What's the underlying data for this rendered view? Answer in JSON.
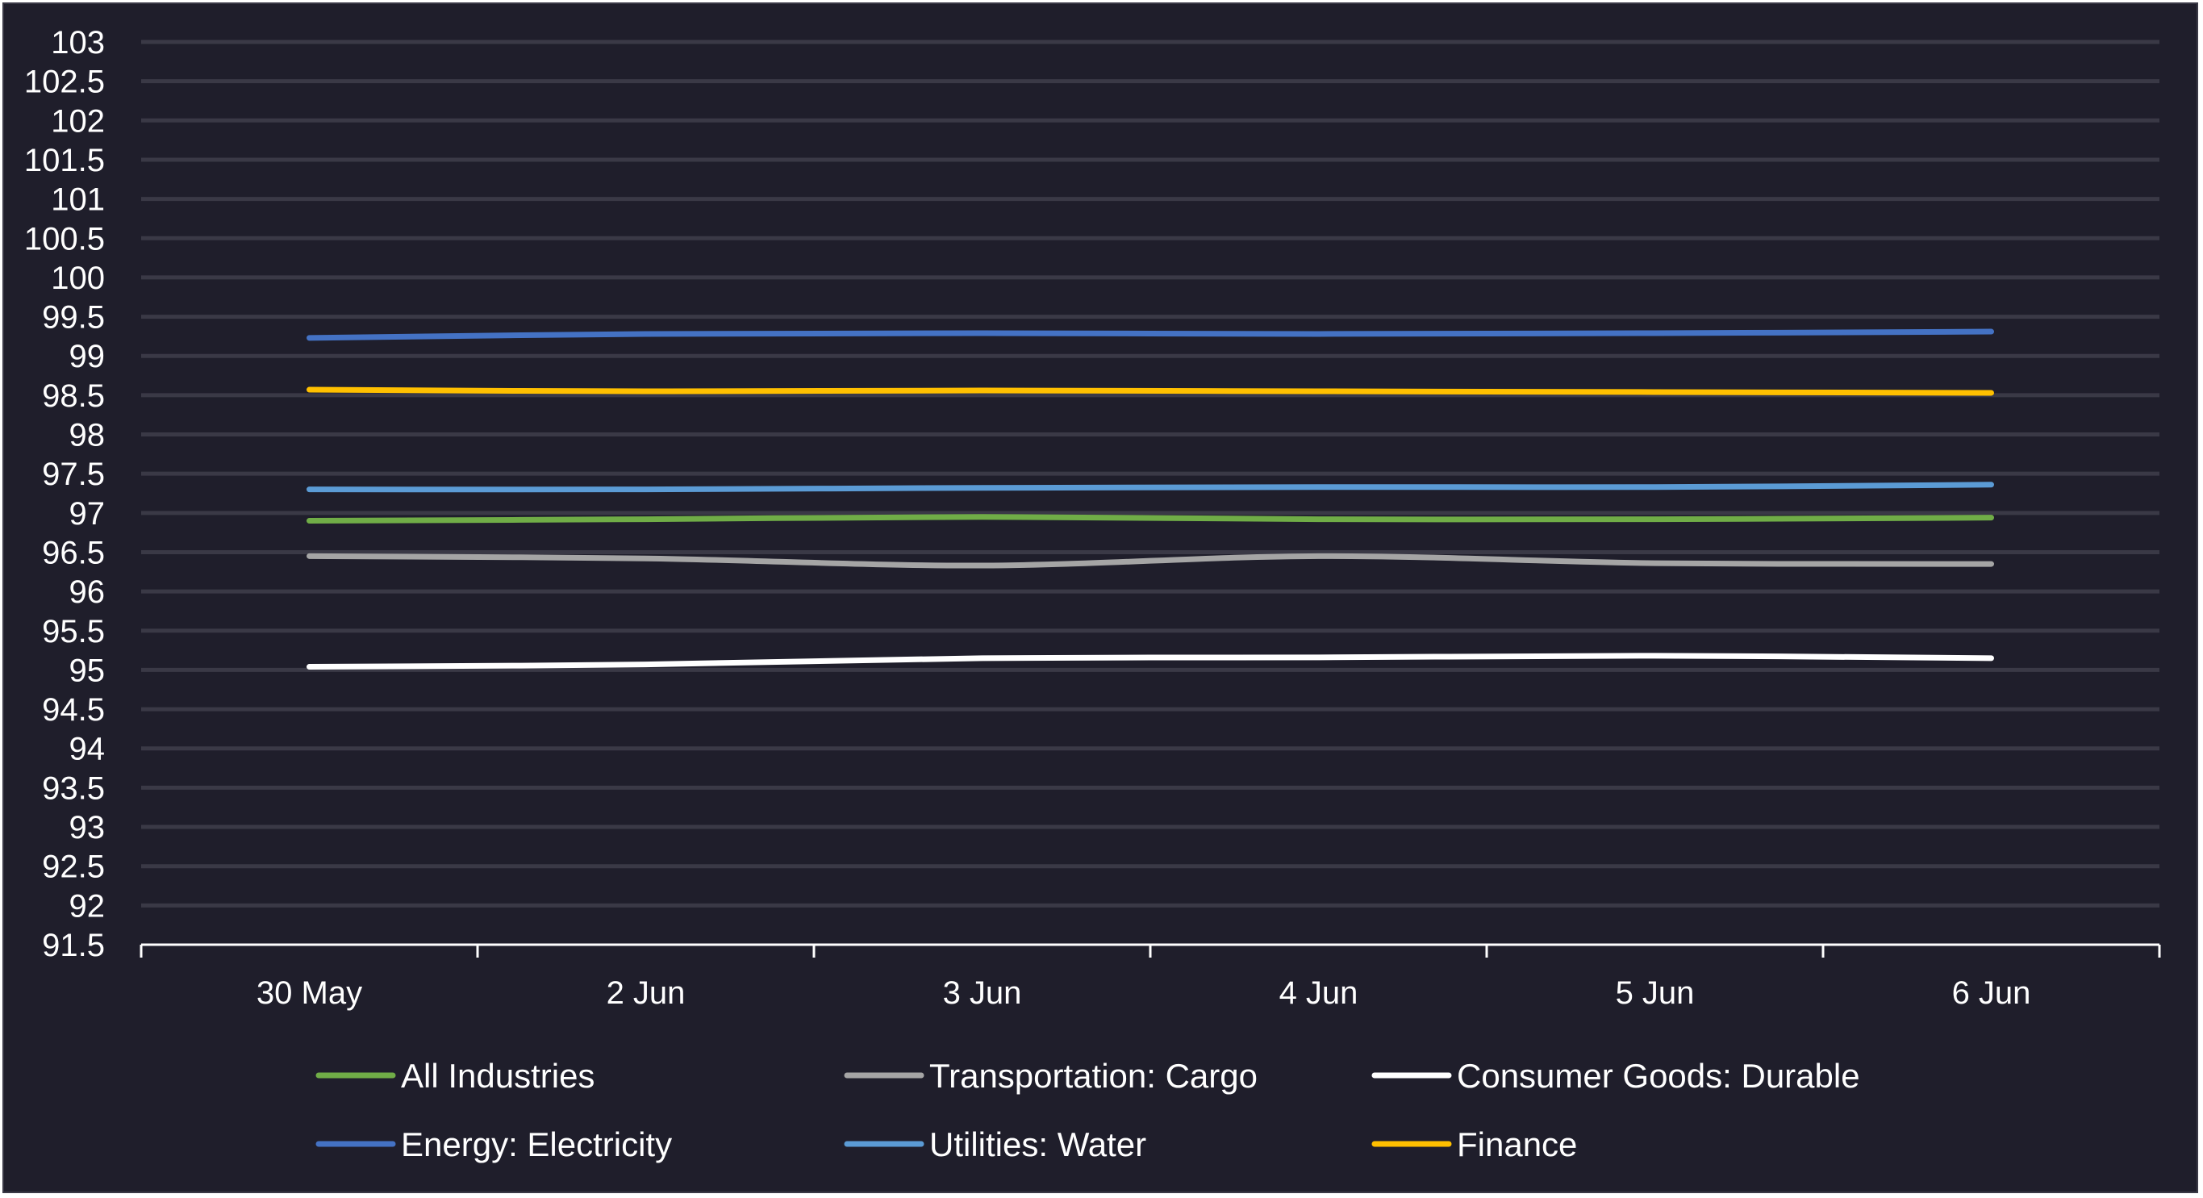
{
  "chart_data": {
    "type": "line",
    "title": "",
    "xlabel": "",
    "ylabel": "",
    "categories": [
      "30 May",
      "2 Jun",
      "3 Jun",
      "4 Jun",
      "5 Jun",
      "6 Jun"
    ],
    "ylim": [
      91.5,
      103
    ],
    "ytick_step": 0.5,
    "grid": true,
    "legend_position": "bottom",
    "background_color": "#1f1e2b",
    "grid_color": "#3a3946",
    "series": [
      {
        "name": "All Industries",
        "color": "#70ad47",
        "values": [
          96.9,
          96.92,
          96.95,
          96.92,
          96.92,
          96.94
        ]
      },
      {
        "name": "Transportation: Cargo",
        "color": "#a5a5a5",
        "values": [
          96.45,
          96.42,
          96.33,
          96.45,
          96.36,
          96.35
        ]
      },
      {
        "name": "Consumer Goods: Durable",
        "color": "#ffffff",
        "values": [
          95.04,
          95.07,
          95.15,
          95.16,
          95.18,
          95.15
        ]
      },
      {
        "name": "Energy: Electricity",
        "color": "#4472c4",
        "values": [
          99.23,
          99.28,
          99.29,
          99.28,
          99.29,
          99.31
        ]
      },
      {
        "name": "Utilities: Water",
        "color": "#5b9bd5",
        "values": [
          97.3,
          97.3,
          97.32,
          97.33,
          97.33,
          97.36
        ]
      },
      {
        "name": "Finance",
        "color": "#ffc000",
        "values": [
          98.57,
          98.55,
          98.56,
          98.55,
          98.54,
          98.53
        ]
      }
    ]
  }
}
